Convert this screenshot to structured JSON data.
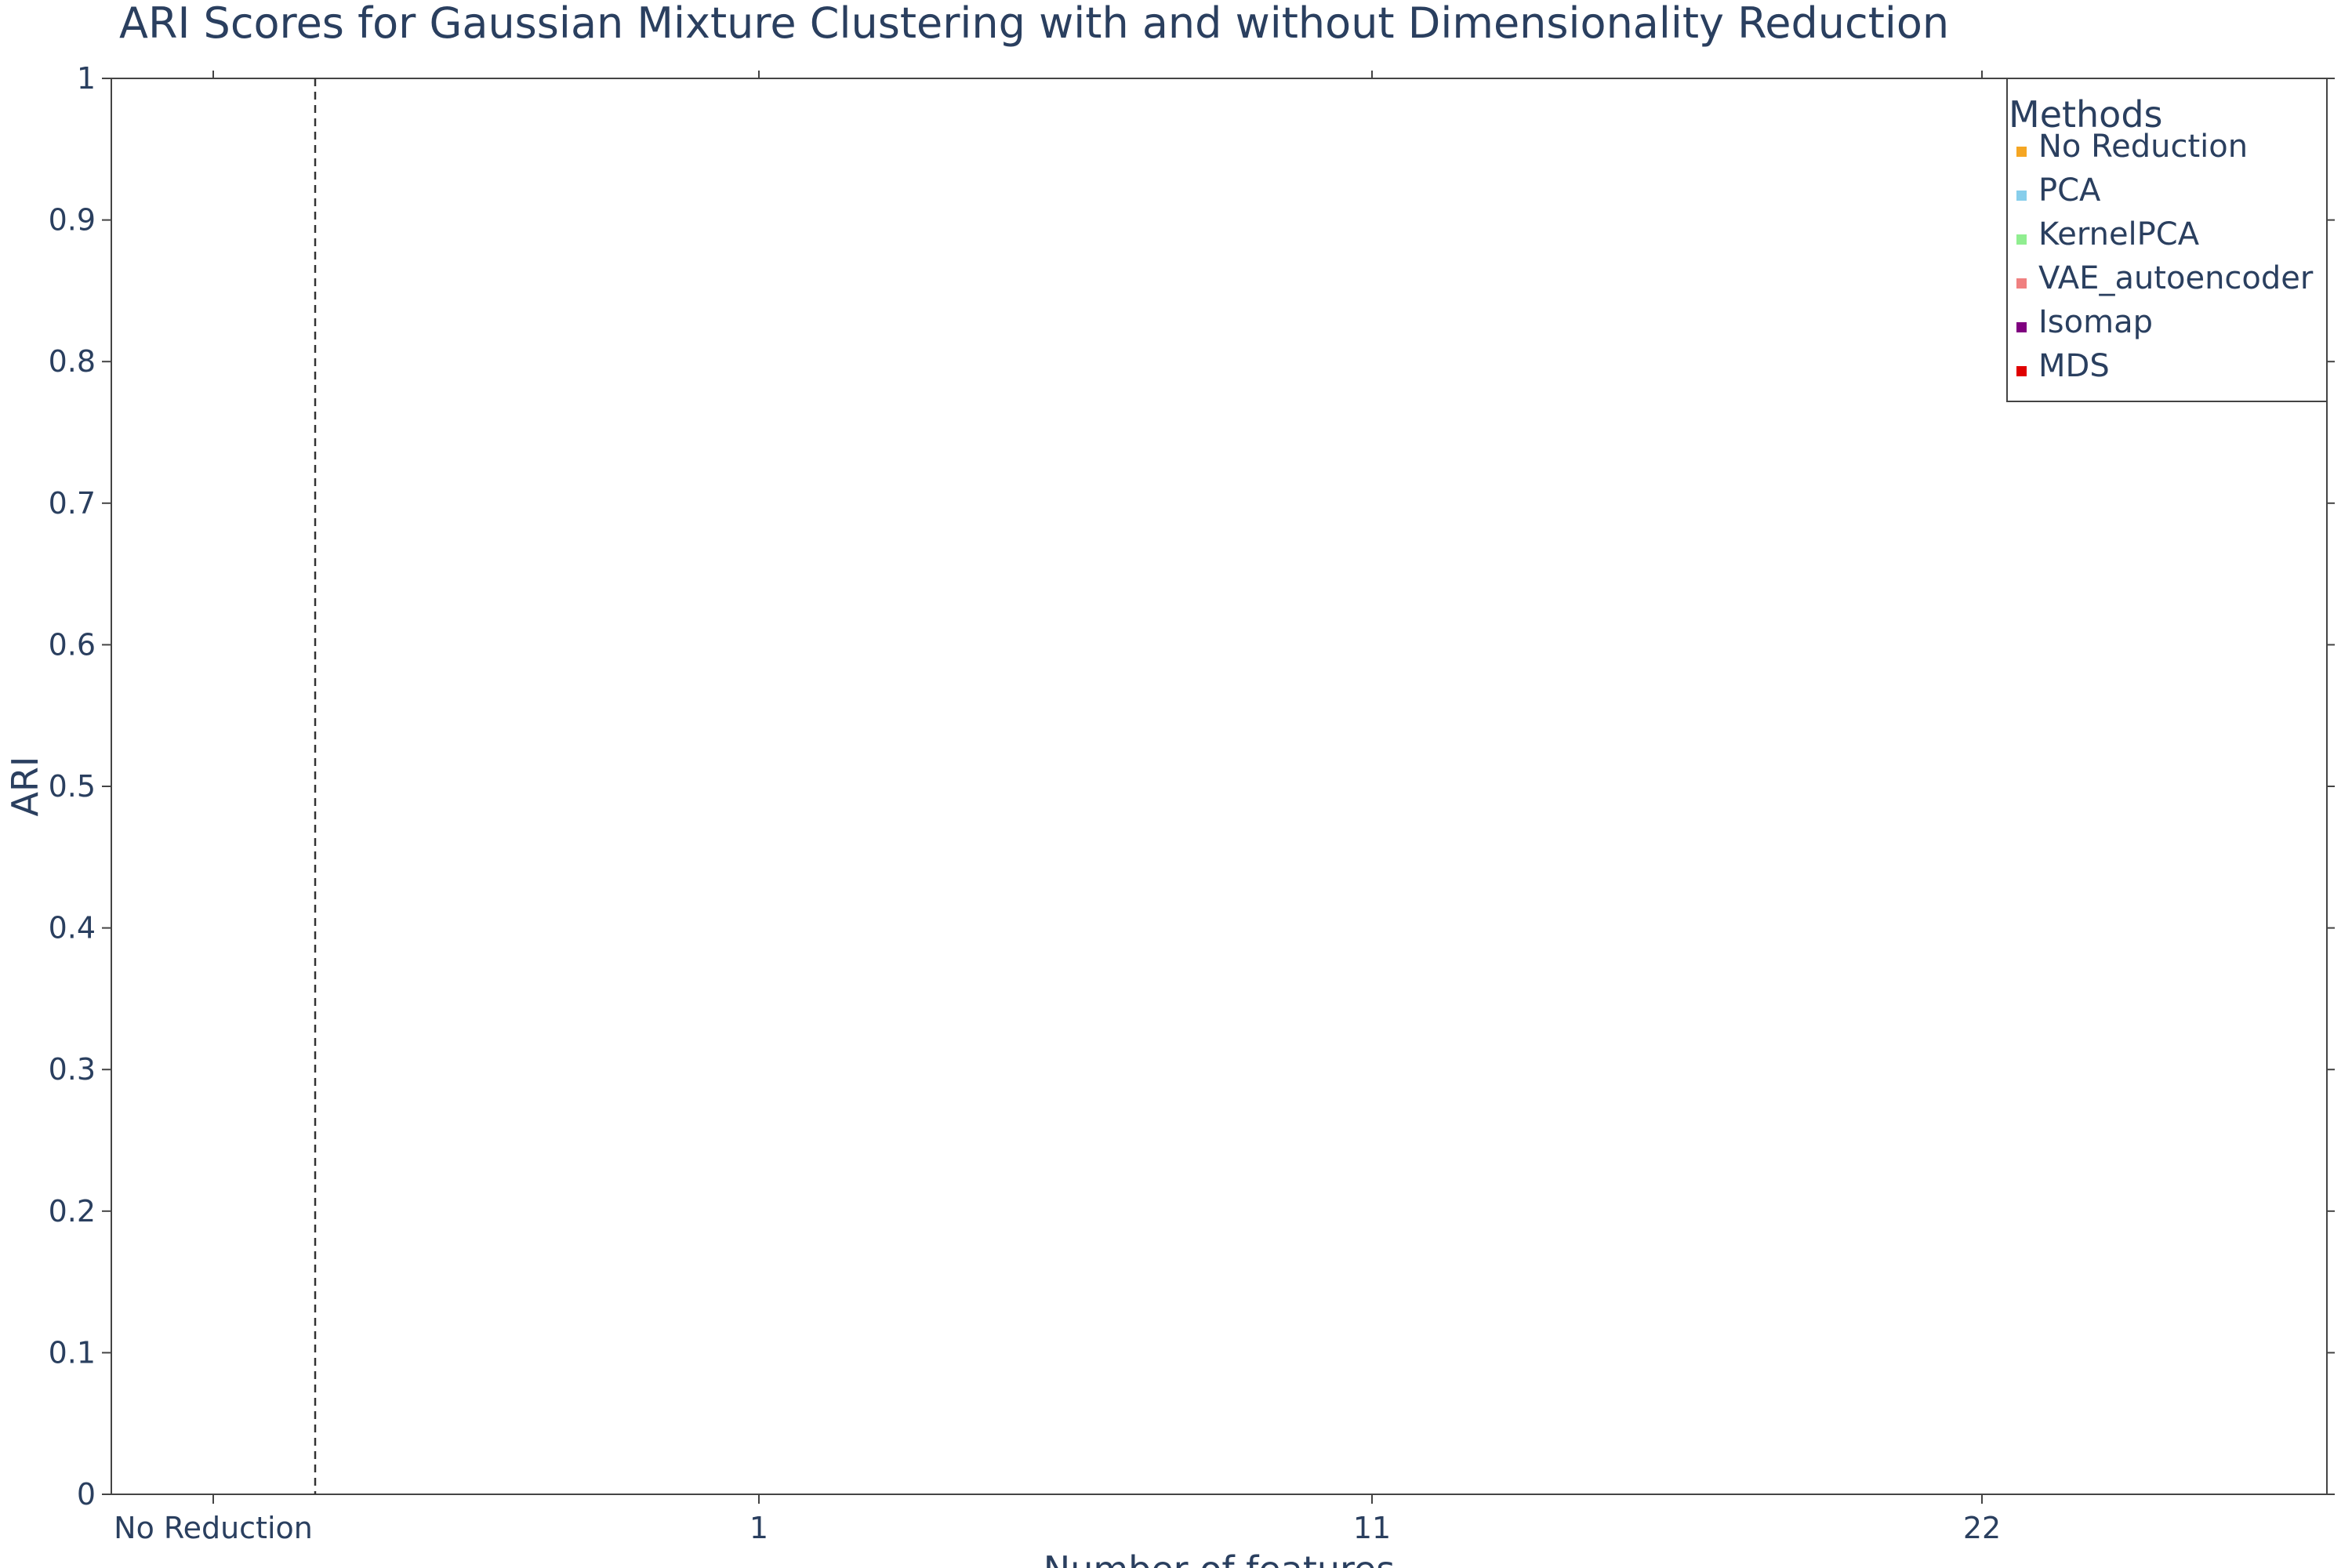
{
  "chart_data": {
    "type": "line",
    "title": "ARI Scores for Gaussian Mixture Clustering with and without Dimensionality Reduction",
    "xlabel": "Number of features",
    "ylabel": "ARI",
    "x_categories": [
      "No Reduction",
      "1",
      "11",
      "22"
    ],
    "y_ticks": [
      "0",
      "0.1",
      "0.2",
      "0.3",
      "0.4",
      "0.5",
      "0.6",
      "0.7",
      "0.8",
      "0.9",
      "1"
    ],
    "ylim": [
      0,
      1
    ],
    "grid": false,
    "separator_line": {
      "style": "dashed",
      "between": [
        "No Reduction",
        "1"
      ]
    },
    "legend": {
      "title": "Methods",
      "placement": "top-right",
      "entries": [
        {
          "name": "No Reduction",
          "color": "#f5a623"
        },
        {
          "name": "PCA",
          "color": "#87ceeb"
        },
        {
          "name": "KernelPCA",
          "color": "#90ee90"
        },
        {
          "name": "VAE_autoencoder",
          "color": "#f08080"
        },
        {
          "name": "Isomap",
          "color": "#800080"
        },
        {
          "name": "MDS",
          "color": "#e00000"
        }
      ]
    },
    "series": []
  }
}
